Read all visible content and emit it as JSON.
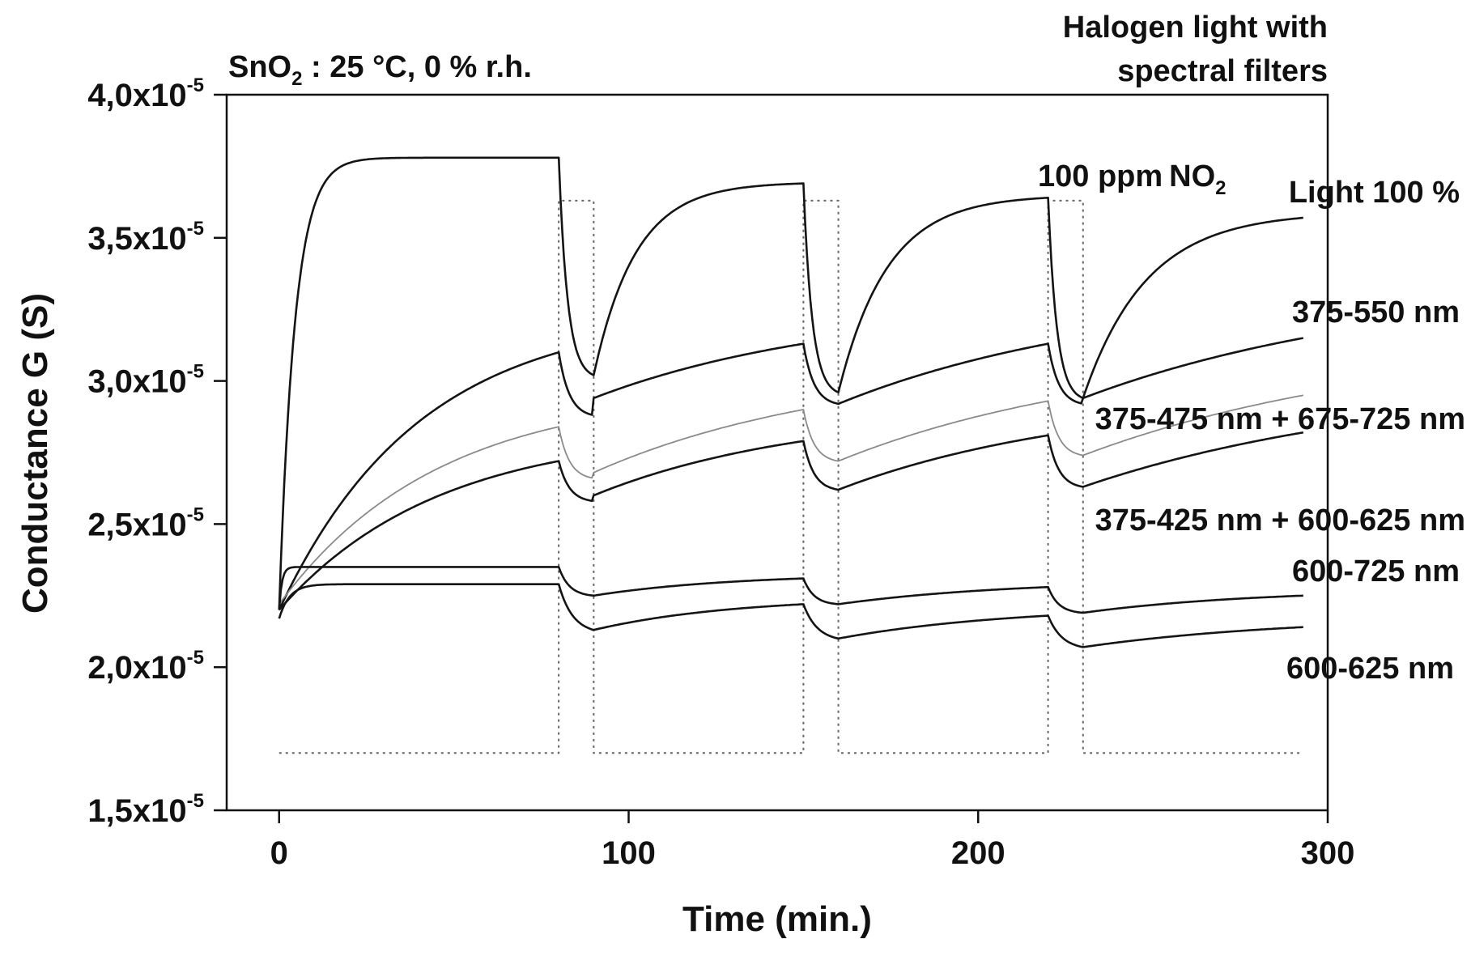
{
  "chart_data": {
    "type": "line",
    "title": "SnO",
    "title_sub": "2",
    "title_rest": " : 25 °C, 0 % r.h.",
    "header": [
      "Halogen light with",
      "spectral filters"
    ],
    "xlabel": "Time (min.)",
    "ylabel": "Conductance  G (S)",
    "xlim": [
      -15,
      300
    ],
    "ylim": [
      1.5e-05,
      4e-05
    ],
    "x_ticks": [
      0,
      100,
      200,
      300
    ],
    "x_tick_labels": [
      "0",
      "100",
      "200",
      "300"
    ],
    "y_ticks": [
      1.5e-05,
      2e-05,
      2.5e-05,
      3e-05,
      3.5e-05,
      4e-05
    ],
    "y_tick_labels": [
      {
        "mant": "1,5x10",
        "exp": "-5"
      },
      {
        "mant": "2,0x10",
        "exp": "-5"
      },
      {
        "mant": "2,5x10",
        "exp": "-5"
      },
      {
        "mant": "3,0x10",
        "exp": "-5"
      },
      {
        "mant": "3,5x10",
        "exp": "-5"
      },
      {
        "mant": "4,0x10",
        "exp": "-5"
      }
    ],
    "grid": false,
    "legend": "inline labels at right",
    "gas_pulses": {
      "name": "100 ppm NO2",
      "label": "100 ppm",
      "label_gas": "NO",
      "label_gas_sub": "2",
      "low": 1.7e-05,
      "high": 3.63e-05,
      "on_intervals": [
        [
          80,
          90
        ],
        [
          150,
          160
        ],
        [
          220,
          230
        ]
      ],
      "end": 293
    },
    "series": [
      {
        "name": "Light 100 %",
        "on_times": [
          0,
          90,
          160,
          230
        ],
        "off_times": [
          80,
          150,
          220
        ],
        "end": 293,
        "on_start": [
          2.2e-05,
          3.02e-05,
          2.96e-05,
          2.94e-05
        ],
        "on_end": [
          3.78e-05,
          3.69e-05,
          3.64e-05,
          3.57e-05
        ],
        "off_end": [
          3.02e-05,
          2.96e-05,
          2.94e-05
        ],
        "tau_rise": [
          4.5,
          12,
          14,
          18
        ],
        "tau_drop": 2.5
      },
      {
        "name": "375-550 nm",
        "on_times": [
          0,
          90,
          160,
          230
        ],
        "off_times": [
          80,
          150,
          220
        ],
        "end": 293,
        "on_start": [
          2.2e-05,
          2.94e-05,
          2.92e-05,
          2.94e-05
        ],
        "on_end": [
          3.1e-05,
          3.13e-05,
          3.13e-05,
          3.15e-05
        ],
        "off_end": [
          2.88e-05,
          2.92e-05,
          2.92e-05
        ],
        "tau_rise": [
          40,
          70,
          80,
          90
        ],
        "tau_drop": 3
      },
      {
        "name": "375-475 nm + 675-725 nm",
        "on_times": [
          0,
          90,
          160,
          230
        ],
        "off_times": [
          80,
          150,
          220
        ],
        "end": 293,
        "on_start": [
          2.22e-05,
          2.68e-05,
          2.72e-05,
          2.74e-05
        ],
        "on_end": [
          2.84e-05,
          2.9e-05,
          2.93e-05,
          2.95e-05
        ],
        "off_end": [
          2.66e-05,
          2.72e-05,
          2.74e-05
        ],
        "tau_rise": [
          45,
          70,
          80,
          90
        ],
        "tau_drop": 3
      },
      {
        "name": "375-425 nm + 600-625 nm",
        "on_times": [
          0,
          90,
          160,
          230
        ],
        "off_times": [
          80,
          150,
          220
        ],
        "end": 293,
        "on_start": [
          2.2e-05,
          2.6e-05,
          2.62e-05,
          2.63e-05
        ],
        "on_end": [
          2.72e-05,
          2.79e-05,
          2.81e-05,
          2.82e-05
        ],
        "off_end": [
          2.58e-05,
          2.62e-05,
          2.63e-05
        ],
        "tau_rise": [
          45,
          60,
          70,
          90
        ],
        "tau_drop": 3
      },
      {
        "name": "600-725 nm",
        "on_times": [
          0,
          90,
          160,
          230
        ],
        "off_times": [
          80,
          150,
          220
        ],
        "end": 293,
        "on_start": [
          2.2e-05,
          2.25e-05,
          2.22e-05,
          2.19e-05
        ],
        "on_end": [
          2.35e-05,
          2.31e-05,
          2.28e-05,
          2.25e-05
        ],
        "off_end": [
          2.25e-05,
          2.22e-05,
          2.19e-05
        ],
        "tau_rise": [
          0.8,
          40,
          50,
          50
        ],
        "tau_drop": 3
      },
      {
        "name": "600-625 nm",
        "on_times": [
          0,
          90,
          160,
          230
        ],
        "off_times": [
          80,
          150,
          220
        ],
        "end": 293,
        "on_start": [
          2.17e-05,
          2.13e-05,
          2.1e-05,
          2.07e-05
        ],
        "on_end": [
          2.29e-05,
          2.22e-05,
          2.18e-05,
          2.14e-05
        ],
        "off_end": [
          2.13e-05,
          2.1e-05,
          2.07e-05
        ],
        "tau_rise": [
          3,
          40,
          50,
          60
        ],
        "tau_drop": 4
      }
    ]
  }
}
